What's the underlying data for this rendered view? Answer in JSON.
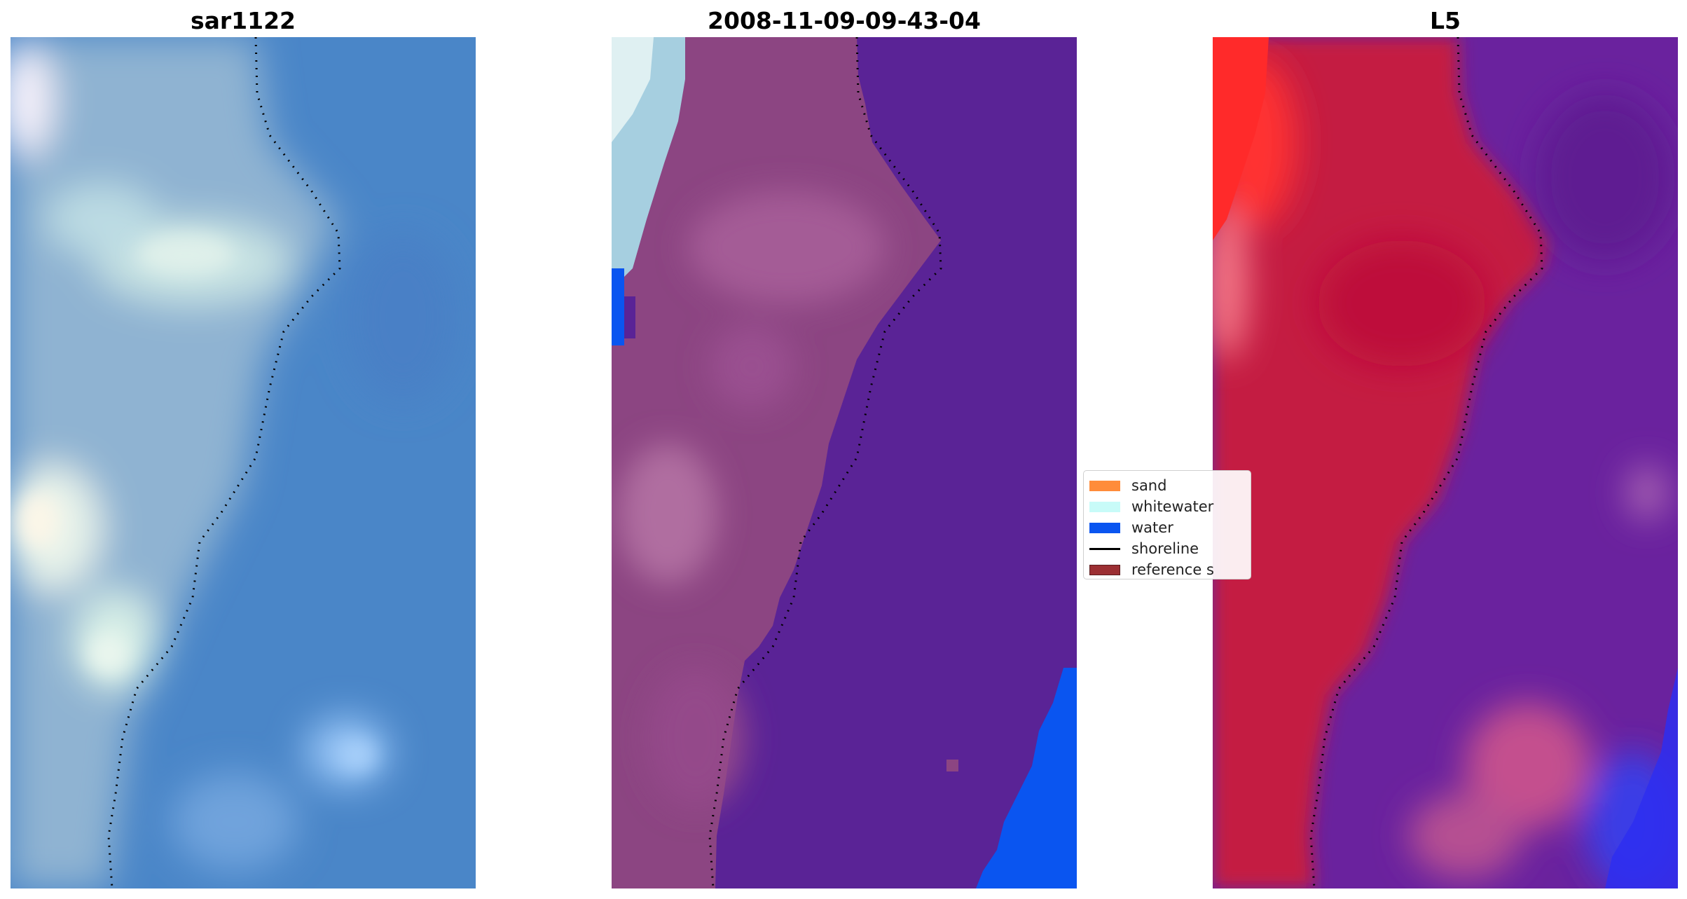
{
  "titles": {
    "rgb": "sar1122",
    "classified": "2008-11-09-09-43-04",
    "mndwi": "L5"
  },
  "legend": {
    "items": [
      {
        "label": "sand",
        "color": "#ff8c3a"
      },
      {
        "label": "whitewater",
        "color": "#c8fbf8"
      },
      {
        "label": "water",
        "color": "#0a55f0"
      },
      {
        "label": "shoreline",
        "color": "#000000"
      },
      {
        "label": "reference s",
        "color": "#9c2f33"
      }
    ]
  },
  "colors": {
    "ocean_rgb": "#4a86c8",
    "land_class": "#8c4582",
    "water_class": "#5a2396",
    "water_blue": "#0a55f0",
    "land_index": "#c41a42",
    "water_index": "#6a229e",
    "index_red": "#ff2a2a",
    "shoreline": "#000000"
  }
}
